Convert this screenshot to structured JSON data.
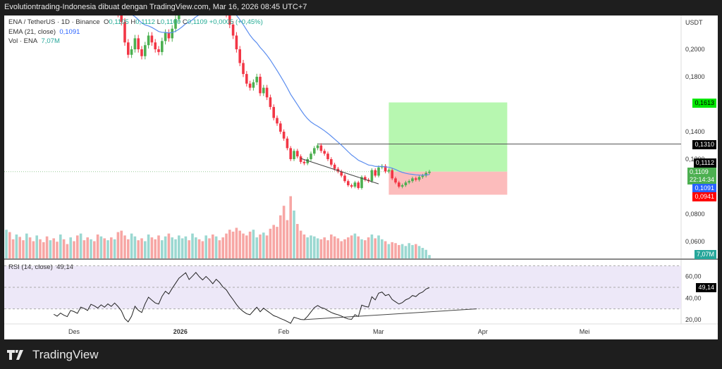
{
  "header": {
    "title": "Evolutiontrading-Indonesia dibuat dengan TradingView.com, Mar 16, 2026 08:45 UTC+7"
  },
  "legend": {
    "symbol": "ENA / TetherUS · 1D · Binance",
    "o_label": "O",
    "o": "0,1105",
    "h_label": "H",
    "h": "0,1112",
    "l_label": "L",
    "l": "0,1100",
    "c_label": "C",
    "c": "0,1109",
    "change": "+0,0005 (+0,45%)",
    "ema_label": "EMA (21, close)",
    "ema_value": "0,1091",
    "vol_label": "Vol · ENA",
    "vol_value": "7,07M",
    "rsi_label": "RSI (14, close)",
    "rsi_value": "49,14"
  },
  "price_axis": {
    "currency": "USDT",
    "ticks": [
      "0,2000",
      "0,1800",
      "0,1400",
      "0,1200",
      "0,0800",
      "0,0600"
    ],
    "tick_values": [
      0.2,
      0.18,
      0.14,
      0.12,
      0.08,
      0.06
    ]
  },
  "price_tags": {
    "tp": {
      "text": "0,1613",
      "color": "#00e600"
    },
    "line": {
      "text": "0,1310",
      "color": "#000000"
    },
    "high": {
      "text": "0,1112",
      "color": "#000000"
    },
    "last": {
      "text": "0,1109",
      "countdown": "22:14:34",
      "color": "#4caf50"
    },
    "ema": {
      "text": "0,1091",
      "color": "#2962ff"
    },
    "sl": {
      "text": "0,0941",
      "color": "#ff0000"
    },
    "vol": {
      "text": "7,07M",
      "color": "#26a69a"
    }
  },
  "rsi_axis": {
    "ticks": [
      "60,00",
      "40,00",
      "20,00"
    ],
    "current": "49,14"
  },
  "time_axis": [
    {
      "label": "Des",
      "day": 20,
      "bold": false
    },
    {
      "label": "2026",
      "day": 51,
      "bold": true
    },
    {
      "label": "Feb",
      "day": 82,
      "bold": false
    },
    {
      "label": "Mar",
      "day": 110,
      "bold": false
    },
    {
      "label": "Apr",
      "day": 141,
      "bold": false
    },
    {
      "label": "Mei",
      "day": 171,
      "bold": false
    }
  ],
  "position": {
    "entry": 0.1109,
    "take_profit": 0.1613,
    "stop_loss": 0.0941,
    "start_day": 113,
    "end_day": 148
  },
  "hline": {
    "price": 0.131,
    "start_day": 92
  },
  "trendlines": {
    "price": {
      "from": [
        87,
        0.1205
      ],
      "to": [
        110,
        0.102
      ]
    },
    "rsi": {
      "from": [
        88,
        20
      ],
      "to": [
        139,
        30
      ]
    }
  },
  "chart_data": {
    "type": "candlestick",
    "title": "ENA / TetherUS · 1D · Binance",
    "closes": [
      0.27,
      0.265,
      0.26,
      0.262,
      0.255,
      0.25,
      0.252,
      0.248,
      0.245,
      0.25,
      0.247,
      0.243,
      0.24,
      0.245,
      0.242,
      0.238,
      0.24,
      0.236,
      0.233,
      0.237,
      0.235,
      0.232,
      0.236,
      0.234,
      0.231,
      0.235,
      0.233,
      0.23,
      0.232,
      0.229,
      0.231,
      0.228,
      0.23,
      0.226,
      0.22,
      0.205,
      0.196,
      0.2,
      0.208,
      0.2,
      0.195,
      0.203,
      0.21,
      0.205,
      0.2,
      0.198,
      0.206,
      0.212,
      0.208,
      0.215,
      0.222,
      0.23,
      0.235,
      0.24,
      0.232,
      0.238,
      0.245,
      0.24,
      0.236,
      0.242,
      0.238,
      0.233,
      0.24,
      0.236,
      0.23,
      0.226,
      0.218,
      0.21,
      0.2,
      0.19,
      0.182,
      0.175,
      0.172,
      0.176,
      0.18,
      0.168,
      0.172,
      0.165,
      0.158,
      0.15,
      0.146,
      0.14,
      0.135,
      0.128,
      0.12,
      0.126,
      0.122,
      0.118,
      0.117,
      0.12,
      0.124,
      0.128,
      0.13,
      0.126,
      0.124,
      0.12,
      0.116,
      0.113,
      0.111,
      0.108,
      0.104,
      0.101,
      0.1,
      0.103,
      0.099,
      0.107,
      0.105,
      0.104,
      0.112,
      0.108,
      0.114,
      0.115,
      0.111,
      0.112,
      0.106,
      0.103,
      0.1,
      0.101,
      0.103,
      0.104,
      0.106,
      0.105,
      0.107,
      0.108,
      0.11,
      0.1109
    ],
    "volumes_m": [
      60,
      55,
      40,
      50,
      45,
      38,
      52,
      44,
      36,
      48,
      40,
      34,
      46,
      38,
      42,
      35,
      50,
      40,
      30,
      44,
      36,
      48,
      52,
      38,
      44,
      40,
      36,
      50,
      46,
      42,
      38,
      44,
      40,
      55,
      58,
      48,
      40,
      52,
      46,
      38,
      42,
      36,
      50,
      44,
      40,
      48,
      38,
      46,
      52,
      44,
      40,
      48,
      42,
      46,
      38,
      52,
      44,
      40,
      36,
      48,
      42,
      50,
      46,
      38,
      44,
      52,
      60,
      56,
      64,
      58,
      52,
      48,
      56,
      60,
      44,
      50,
      54,
      48,
      62,
      70,
      66,
      90,
      110,
      80,
      130,
      100,
      72,
      58,
      50,
      44,
      48,
      46,
      42,
      40,
      44,
      38,
      50,
      46,
      42,
      36,
      40,
      44,
      48,
      52,
      46,
      40,
      38,
      44,
      50,
      42,
      48,
      40,
      36,
      30,
      34,
      32,
      28,
      30,
      26,
      32,
      28,
      30,
      26,
      22,
      18,
      7.07
    ],
    "ylim": [
      0.0545,
      0.2246
    ],
    "rsi_ylim": [
      15,
      75
    ],
    "x_unit": "day index"
  }
}
